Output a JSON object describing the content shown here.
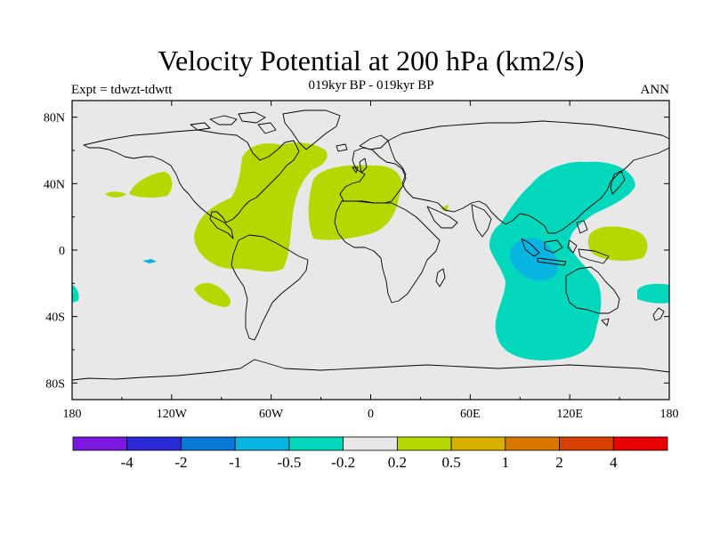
{
  "title": "Velocity Potential at 200 hPa (km2/s)",
  "subtitle": "019kyr BP - 019kyr BP",
  "left_label": "Expt = tdwzt-tdwtt",
  "right_label": "ANN",
  "map": {
    "projection": "cylindrical-equidistant",
    "lon_range": [
      -180,
      180
    ],
    "lat_range": [
      -90,
      90
    ],
    "ocean_color": "#e8e8e8",
    "coastline_color": "#000000",
    "x_ticks": [
      {
        "lon": -180,
        "label": "180"
      },
      {
        "lon": -120,
        "label": "120W"
      },
      {
        "lon": -60,
        "label": "60W"
      },
      {
        "lon": 0,
        "label": "0"
      },
      {
        "lon": 60,
        "label": "60E"
      },
      {
        "lon": 120,
        "label": "120E"
      },
      {
        "lon": 180,
        "label": "180"
      }
    ],
    "y_ticks": [
      {
        "lat": 80,
        "label": "80N"
      },
      {
        "lat": 40,
        "label": "40N"
      },
      {
        "lat": 0,
        "label": "0"
      },
      {
        "lat": -40,
        "label": "40S"
      },
      {
        "lat": -80,
        "label": "80S"
      }
    ]
  },
  "colorbar": {
    "colors": [
      "#7a18e0",
      "#2a2ad8",
      "#0a78d8",
      "#08b4e0",
      "#04d8bc",
      "#e8e8e8",
      "#b4d800",
      "#d8b000",
      "#d87800",
      "#d84000",
      "#e80000"
    ],
    "labels": [
      "-4",
      "-2",
      "-1",
      "-0.5",
      "-0.2",
      "0.2",
      "0.5",
      "1",
      "2",
      "4"
    ]
  },
  "contours": [
    {
      "level": "0.2 to 0.5",
      "color": "#b4d800",
      "region": "Americas and Atlantic"
    },
    {
      "level": "0.2 to 0.5",
      "color": "#b4d800",
      "region": "Africa and Atlantic"
    },
    {
      "level": "0.2 to 0.5",
      "color": "#b4d800",
      "region": "North Pacific"
    },
    {
      "level": "0.2 to 0.5",
      "color": "#b4d800",
      "region": "Southeast Pacific"
    },
    {
      "level": "0.2 to 0.5",
      "color": "#b4d800",
      "region": "Western Pacific"
    },
    {
      "level": "-0.5 to -0.2",
      "color": "#04d8bc",
      "region": "Indian Ocean and western Pacific"
    },
    {
      "level": "-0.5 to -0.2",
      "color": "#04d8bc",
      "region": "Southwest Pacific"
    },
    {
      "level": "-0.5 to -0.2",
      "color": "#04d8bc",
      "region": "South Pacific west edge"
    },
    {
      "level": "-1 to -0.5",
      "color": "#08b4e0",
      "region": "Maritime Continent"
    }
  ]
}
